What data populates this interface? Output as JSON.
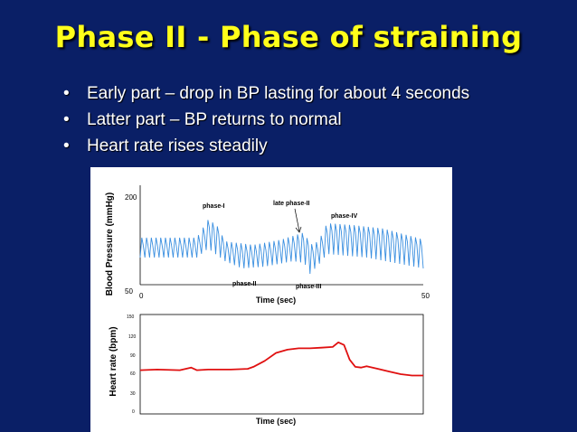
{
  "slide": {
    "title": "Phase II - Phase of straining",
    "bullets": [
      "Early part – drop in BP lasting for about 4 seconds",
      "Latter part – BP returns to normal",
      "Heart rate rises steadily"
    ],
    "bullet_glyph": "•",
    "colors": {
      "background": "#0a1f66",
      "title": "#ffff1a",
      "text": "#ffffff"
    }
  },
  "chart_data": [
    {
      "type": "line",
      "ylabel": "Blood Pressure (mmHg)",
      "xlabel": "Time (sec)",
      "xlim": [
        0,
        50
      ],
      "ylim": [
        50,
        200
      ],
      "x_ticks": [
        "0",
        "50"
      ],
      "y_ticks": [
        "200",
        "50"
      ],
      "annotations": [
        "phase-I",
        "late phase-II",
        "phase-IV",
        "phase-II",
        "phase-III"
      ],
      "color": "#3a8fe0"
    },
    {
      "type": "line",
      "ylabel": "Heart rate (bpm)",
      "xlabel": "Time (sec)",
      "ylim": [
        0,
        150
      ],
      "y_ticks": [
        "150",
        "120",
        "90",
        "60",
        "30",
        "0"
      ],
      "color": "#e01010",
      "series": [
        {
          "x": [
            0,
            3,
            7,
            9,
            10,
            12,
            16,
            19,
            20,
            22,
            24,
            26,
            28,
            30,
            32,
            34,
            35,
            36,
            37,
            38,
            39,
            40,
            42,
            44,
            46,
            48,
            50
          ],
          "y": [
            66,
            67,
            66,
            70,
            66,
            67,
            67,
            68,
            71,
            80,
            92,
            97,
            99,
            99,
            100,
            101,
            108,
            104,
            82,
            71,
            70,
            72,
            68,
            64,
            60,
            58,
            58
          ]
        }
      ]
    }
  ]
}
